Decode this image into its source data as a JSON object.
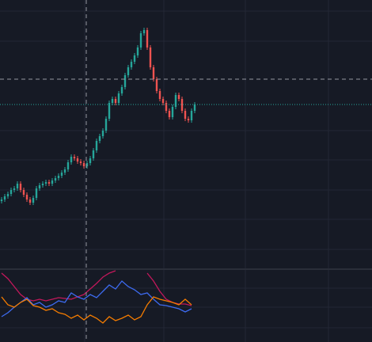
{
  "chart_data": [
    {
      "type": "candlestick",
      "ylim": [
        0,
        340
      ],
      "up_color": "#26a69a",
      "down_color": "#ef5350",
      "last_price_line": true,
      "open": [
        86,
        88,
        92,
        95,
        100,
        102,
        108,
        100,
        94,
        88,
        84,
        90,
        102,
        106,
        108,
        110,
        108,
        112,
        115,
        118,
        122,
        126,
        135,
        142,
        140,
        136,
        134,
        130,
        134,
        140,
        150,
        162,
        168,
        175,
        190,
        210,
        215,
        210,
        222,
        230,
        245,
        255,
        262,
        270,
        280,
        298,
        302,
        280,
        255,
        240,
        225,
        215,
        210,
        200,
        192,
        205,
        220,
        215,
        200,
        190,
        188,
        200
      ],
      "high": [
        91,
        95,
        98,
        103,
        105,
        111,
        111,
        103,
        97,
        91,
        93,
        105,
        109,
        111,
        113,
        113,
        115,
        118,
        121,
        125,
        129,
        138,
        145,
        145,
        143,
        139,
        137,
        137,
        143,
        153,
        165,
        171,
        178,
        193,
        213,
        218,
        218,
        225,
        233,
        248,
        258,
        265,
        273,
        283,
        301,
        305,
        305,
        283,
        258,
        243,
        228,
        218,
        213,
        203,
        208,
        223,
        223,
        218,
        203,
        193,
        203,
        211
      ],
      "low": [
        83,
        85,
        89,
        92,
        97,
        99,
        97,
        91,
        85,
        81,
        81,
        87,
        99,
        103,
        105,
        105,
        105,
        109,
        112,
        115,
        119,
        123,
        132,
        137,
        133,
        131,
        127,
        127,
        131,
        137,
        147,
        159,
        165,
        172,
        187,
        207,
        207,
        207,
        219,
        227,
        242,
        252,
        259,
        267,
        277,
        295,
        277,
        252,
        237,
        222,
        212,
        207,
        197,
        189,
        189,
        202,
        212,
        197,
        187,
        185,
        185,
        197
      ],
      "close": [
        88,
        92,
        95,
        100,
        102,
        108,
        100,
        94,
        88,
        84,
        90,
        102,
        106,
        108,
        110,
        108,
        112,
        115,
        118,
        122,
        126,
        135,
        142,
        140,
        136,
        134,
        130,
        134,
        140,
        150,
        162,
        168,
        175,
        190,
        210,
        215,
        210,
        222,
        230,
        245,
        255,
        262,
        270,
        280,
        298,
        302,
        280,
        255,
        240,
        225,
        215,
        210,
        200,
        192,
        205,
        220,
        215,
        200,
        190,
        188,
        200,
        208
      ]
    },
    {
      "type": "line",
      "ylim": [
        0,
        92
      ],
      "series": [
        {
          "color": "#c2185b",
          "values": [
            87,
            80,
            70,
            60,
            54,
            52,
            54,
            52,
            54,
            56,
            55,
            54,
            57,
            60,
            67,
            74,
            82,
            87,
            90,
            null,
            null,
            null,
            null,
            87,
            77,
            64,
            54,
            50,
            48,
            48,
            46
          ]
        },
        {
          "color": "#3d6bf0",
          "values": [
            32,
            37,
            44,
            50,
            56,
            47,
            50,
            44,
            47,
            52,
            50,
            62,
            57,
            54,
            60,
            56,
            64,
            72,
            67,
            77,
            70,
            66,
            60,
            62,
            54,
            47,
            46,
            44,
            42,
            38,
            42
          ]
        },
        {
          "color": "#f57c00",
          "values": [
            57,
            47,
            44,
            50,
            54,
            46,
            44,
            40,
            42,
            37,
            35,
            30,
            34,
            28,
            34,
            30,
            24,
            32,
            27,
            30,
            34,
            28,
            32,
            47,
            57,
            54,
            52,
            50,
            47,
            54,
            47
          ]
        }
      ]
    }
  ]
}
